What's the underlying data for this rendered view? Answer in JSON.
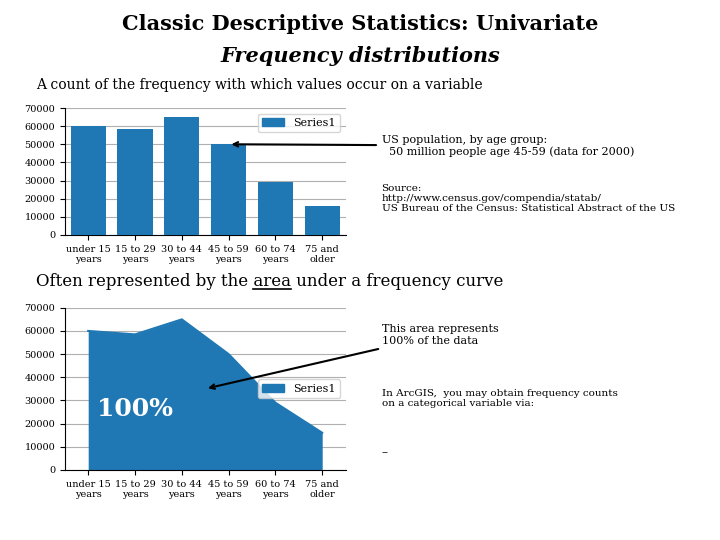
{
  "title": "Classic Descriptive Statistics: Univariate",
  "subtitle": "Frequency distributions",
  "chart_data": [
    {
      "type": "bar",
      "title": "A count of the frequency with which values occur on a variable",
      "categories": [
        "under 15\nyears",
        "15 to 29\nyears",
        "30 to 44\nyears",
        "45 to 59\nyears",
        "60 to 74\nyears",
        "75 and\nolder"
      ],
      "series": [
        {
          "name": "Series1",
          "values": [
            60000,
            58500,
            65000,
            50000,
            29000,
            16000
          ]
        }
      ],
      "ylim": [
        0,
        70000
      ],
      "yticks": [
        0,
        10000,
        20000,
        30000,
        40000,
        50000,
        60000,
        70000
      ],
      "grid": true,
      "legend": "upper right",
      "pointer": {
        "text": "US population, by age group:\n  50 million people age 45-59 (data for 2000)",
        "category": "45 to 59\nyears"
      },
      "notes": [
        "Source:\nhttp://www.census.gov/compendia/statab/\nUS Bureau of the Census: Statistical Abstract of the US"
      ]
    },
    {
      "type": "area",
      "title": "Often represented by the area under a frequency curve",
      "underline": "area",
      "categories": [
        "under 15\nyears",
        "15 to 29\nyears",
        "30 to 44\nyears",
        "45 to 59\nyears",
        "60 to 74\nyears",
        "75 and\nolder"
      ],
      "series": [
        {
          "name": "Series1",
          "values": [
            60000,
            58500,
            65000,
            50000,
            29000,
            16000
          ]
        }
      ],
      "ylim": [
        0,
        70000
      ],
      "yticks": [
        0,
        10000,
        20000,
        30000,
        40000,
        50000,
        60000,
        70000
      ],
      "grid": true,
      "legend": "center right",
      "inside_label": "100%",
      "pointer": {
        "text": "This area represents\n100% of the data"
      },
      "notes": [
        "In ArcGIS,  you may obtain frequency counts\non a categorical variable via:",
        "--"
      ]
    }
  ]
}
